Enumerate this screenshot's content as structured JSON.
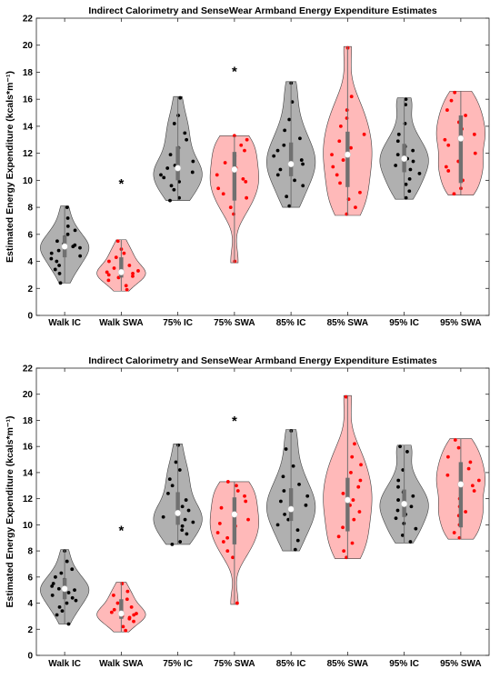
{
  "chart_data": [
    {
      "type": "violin",
      "title": "Indirect Calorimetry and SenseWear Armband Energy Expenditure Estimates",
      "xlabel": "",
      "ylabel": "Estimated Energy Expenditure (kcals*m⁻¹)",
      "ylim": [
        0,
        22
      ],
      "yticks": [
        0,
        2,
        4,
        6,
        8,
        10,
        12,
        14,
        16,
        18,
        20,
        22
      ],
      "categories": [
        "Walk IC",
        "Walk SWA",
        "75% IC",
        "75% SWA",
        "85% IC",
        "85% SWA",
        "95% IC",
        "95% SWA"
      ],
      "grid": false,
      "legend": "none",
      "colors": {
        "IC": "#808080",
        "SWA": "#ff8080",
        "IC_points": "#000000",
        "SWA_points": "#ff0000",
        "whisker": "#707070",
        "median": "#ffffff"
      },
      "annotations": [
        {
          "text": "*",
          "x": 1.5,
          "y": 9.9
        },
        {
          "text": "*",
          "x": 3.5,
          "y": 18.2
        }
      ],
      "series": [
        {
          "category": "Walk IC",
          "group": "IC",
          "min": 2.4,
          "max": 8.1,
          "q1": 4.3,
          "median": 5.1,
          "q3": 5.9,
          "points": [
            2.4,
            3.1,
            3.4,
            3.7,
            4.0,
            4.2,
            4.4,
            4.6,
            4.8,
            5.0,
            5.1,
            5.2,
            5.3,
            5.5,
            5.8,
            6.0,
            6.3,
            6.6,
            7.2,
            8.0
          ]
        },
        {
          "category": "Walk SWA",
          "group": "SWA",
          "min": 1.8,
          "max": 5.6,
          "q1": 2.8,
          "median": 3.2,
          "q3": 4.3,
          "points": [
            1.9,
            2.2,
            2.6,
            2.8,
            2.9,
            3.0,
            3.1,
            3.2,
            3.3,
            3.5,
            3.7,
            4.0,
            4.3,
            4.6,
            4.9,
            5.5
          ]
        },
        {
          "category": "75% IC",
          "group": "IC",
          "min": 8.5,
          "max": 16.2,
          "q1": 10.0,
          "median": 10.9,
          "q3": 12.5,
          "points": [
            8.5,
            8.7,
            9.3,
            9.6,
            9.9,
            10.2,
            10.4,
            10.6,
            10.9,
            11.1,
            11.4,
            11.9,
            12.4,
            13.0,
            13.5,
            14.2,
            14.8,
            16.1
          ]
        },
        {
          "category": "75% SWA",
          "group": "SWA",
          "min": 3.9,
          "max": 13.3,
          "q1": 8.5,
          "median": 10.8,
          "q3": 12.1,
          "points": [
            4.0,
            7.5,
            8.0,
            8.7,
            9.4,
            9.9,
            10.4,
            10.9,
            11.3,
            11.8,
            12.2,
            12.6,
            13.0,
            13.3,
            10.1,
            9.0
          ]
        },
        {
          "category": "85% IC",
          "group": "IC",
          "min": 8.0,
          "max": 17.3,
          "q1": 10.3,
          "median": 11.2,
          "q3": 12.8,
          "points": [
            8.1,
            8.8,
            9.6,
            10.0,
            10.4,
            10.8,
            11.2,
            11.5,
            11.8,
            12.2,
            12.6,
            13.1,
            13.7,
            14.5,
            15.8,
            17.2
          ]
        },
        {
          "category": "85% SWA",
          "group": "SWA",
          "min": 7.4,
          "max": 19.9,
          "q1": 9.5,
          "median": 11.9,
          "q3": 13.6,
          "points": [
            7.5,
            8.0,
            8.6,
            9.1,
            9.8,
            10.4,
            11.0,
            11.5,
            11.9,
            12.4,
            12.9,
            13.4,
            14.0,
            14.6,
            15.2,
            16.2,
            19.8
          ]
        },
        {
          "category": "95% IC",
          "group": "IC",
          "min": 8.6,
          "max": 16.1,
          "q1": 10.6,
          "median": 11.6,
          "q3": 12.7,
          "points": [
            8.7,
            9.2,
            9.7,
            10.1,
            10.5,
            10.8,
            11.1,
            11.4,
            11.6,
            11.9,
            12.2,
            12.5,
            12.9,
            13.4,
            14.2,
            15.6,
            16.0
          ]
        },
        {
          "category": "95% SWA",
          "group": "SWA",
          "min": 8.9,
          "max": 16.6,
          "q1": 9.8,
          "median": 13.1,
          "q3": 14.8,
          "points": [
            9.0,
            9.4,
            10.0,
            10.7,
            11.4,
            12.0,
            12.6,
            13.0,
            13.4,
            13.8,
            14.3,
            14.8,
            15.2,
            15.9,
            16.5,
            11.0
          ]
        }
      ]
    },
    {
      "type": "violin",
      "title": "Indirect Calorimetry and SenseWear Armband Energy Expenditure Estimates",
      "xlabel": "",
      "ylabel": "Estimated Energy Expenditure (kcals*m⁻¹)",
      "ylim": [
        0,
        22
      ],
      "yticks": [
        0,
        2,
        4,
        6,
        8,
        10,
        12,
        14,
        16,
        18,
        20,
        22
      ],
      "categories": [
        "Walk IC",
        "Walk SWA",
        "75% IC",
        "75% SWA",
        "85% IC",
        "85% SWA",
        "95% IC",
        "95% SWA"
      ],
      "grid": false,
      "legend": "none",
      "colors": {
        "IC": "#808080",
        "SWA": "#ff8080",
        "IC_points": "#000000",
        "SWA_points": "#ff0000",
        "whisker": "#707070",
        "median": "#ffffff"
      },
      "annotations": [
        {
          "text": "*",
          "x": 1.5,
          "y": 9.7
        },
        {
          "text": "*",
          "x": 3.5,
          "y": 18.1
        }
      ],
      "series": [
        {
          "category": "Walk IC",
          "group": "IC",
          "min": 2.4,
          "max": 8.1,
          "q1": 4.3,
          "median": 5.1,
          "q3": 5.9,
          "points": [
            2.4,
            3.1,
            3.4,
            3.7,
            4.0,
            4.2,
            4.4,
            4.6,
            4.8,
            5.0,
            5.1,
            5.2,
            5.3,
            5.5,
            5.8,
            6.0,
            6.3,
            6.6,
            7.2,
            8.0
          ]
        },
        {
          "category": "Walk SWA",
          "group": "SWA",
          "min": 1.8,
          "max": 5.6,
          "q1": 2.8,
          "median": 3.2,
          "q3": 4.3,
          "points": [
            1.9,
            2.2,
            2.6,
            2.8,
            2.9,
            3.0,
            3.1,
            3.2,
            3.3,
            3.5,
            3.7,
            4.0,
            4.3,
            4.6,
            4.9,
            5.5
          ]
        },
        {
          "category": "75% IC",
          "group": "IC",
          "min": 8.5,
          "max": 16.2,
          "q1": 10.0,
          "median": 10.9,
          "q3": 12.5,
          "points": [
            8.5,
            8.7,
            9.3,
            9.6,
            9.9,
            10.2,
            10.4,
            10.6,
            10.9,
            11.1,
            11.4,
            11.9,
            12.4,
            13.0,
            13.5,
            14.2,
            14.8,
            16.1
          ]
        },
        {
          "category": "75% SWA",
          "group": "SWA",
          "min": 3.9,
          "max": 13.3,
          "q1": 8.5,
          "median": 10.8,
          "q3": 12.1,
          "points": [
            4.0,
            7.5,
            8.0,
            8.7,
            9.4,
            9.9,
            10.4,
            10.9,
            11.3,
            11.8,
            12.2,
            12.6,
            13.0,
            13.3,
            10.1,
            9.0
          ]
        },
        {
          "category": "85% IC",
          "group": "IC",
          "min": 8.0,
          "max": 17.3,
          "q1": 10.3,
          "median": 11.2,
          "q3": 12.8,
          "points": [
            8.1,
            8.8,
            9.6,
            10.0,
            10.4,
            10.8,
            11.2,
            11.5,
            11.8,
            12.2,
            12.6,
            13.1,
            13.7,
            14.5,
            15.8,
            17.2
          ]
        },
        {
          "category": "85% SWA",
          "group": "SWA",
          "min": 7.4,
          "max": 19.9,
          "q1": 9.5,
          "median": 11.9,
          "q3": 13.6,
          "points": [
            7.5,
            8.0,
            8.6,
            9.1,
            9.8,
            10.4,
            11.0,
            11.5,
            11.9,
            12.4,
            12.9,
            13.4,
            14.0,
            14.6,
            15.2,
            16.2,
            19.8
          ]
        },
        {
          "category": "95% IC",
          "group": "IC",
          "min": 8.6,
          "max": 16.1,
          "q1": 10.6,
          "median": 11.6,
          "q3": 12.7,
          "points": [
            8.7,
            9.2,
            9.7,
            10.1,
            10.5,
            10.8,
            11.1,
            11.4,
            11.6,
            11.9,
            12.2,
            12.5,
            12.9,
            13.4,
            14.2,
            15.6,
            16.0
          ]
        },
        {
          "category": "95% SWA",
          "group": "SWA",
          "min": 8.9,
          "max": 16.6,
          "q1": 9.8,
          "median": 13.1,
          "q3": 14.8,
          "points": [
            9.0,
            9.4,
            10.0,
            10.7,
            11.4,
            12.0,
            12.6,
            13.0,
            13.4,
            13.8,
            14.3,
            14.8,
            15.2,
            15.9,
            16.5,
            11.0
          ]
        }
      ]
    }
  ]
}
